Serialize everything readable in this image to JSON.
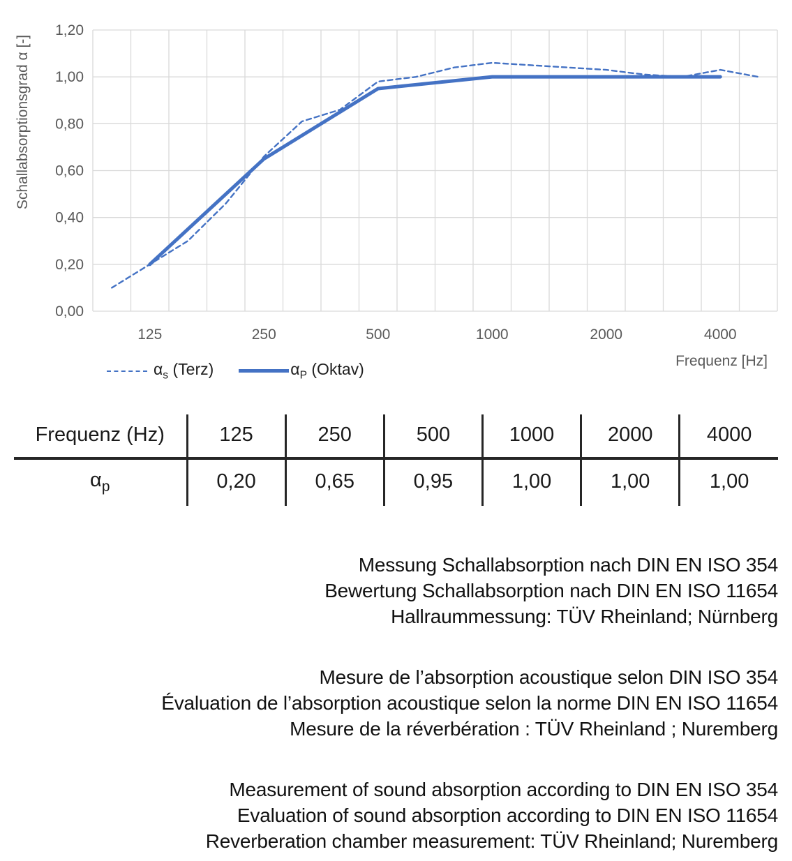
{
  "colors": {
    "series_blue": "#4472C4",
    "grid": "#D9D9D9",
    "axis_text": "#595959",
    "text": "#1A1A1A"
  },
  "chart": {
    "y_axis_title": "Schallabsorptionsgrad α [-]",
    "x_axis_title": "Frequenz [Hz]",
    "y_ticks": [
      "0,00",
      "0,20",
      "0,40",
      "0,60",
      "0,80",
      "1,00",
      "1,20"
    ],
    "x_ticks": [
      "125",
      "250",
      "500",
      "1000",
      "2000",
      "4000"
    ],
    "legend": {
      "terz": {
        "symbol": "α",
        "sub": "s",
        "rest": " (Terz)"
      },
      "oktav": {
        "symbol": "α",
        "sub": "P",
        "rest": " (Oktav)"
      }
    }
  },
  "chart_data": {
    "type": "line",
    "title": "",
    "xlabel": "Frequenz [Hz]",
    "ylabel": "Schallabsorptionsgrad α [-]",
    "ylim": [
      0,
      1.2
    ],
    "x_scale": "logarithmic, third-octave bands 100–5000 Hz",
    "grid": true,
    "legend_position": "bottom-left",
    "x_tick_labels": [
      125,
      250,
      500,
      1000,
      2000,
      4000
    ],
    "series": [
      {
        "name": "αs (Terz)",
        "style": "dashed",
        "x": [
          100,
          125,
          160,
          200,
          250,
          315,
          400,
          500,
          630,
          800,
          1000,
          1250,
          1600,
          2000,
          2500,
          3150,
          4000,
          5000
        ],
        "values": [
          0.1,
          0.2,
          0.3,
          0.46,
          0.66,
          0.81,
          0.86,
          0.98,
          1.0,
          1.04,
          1.06,
          1.05,
          1.04,
          1.03,
          1.01,
          1.0,
          1.03,
          1.0
        ]
      },
      {
        "name": "αP (Oktav)",
        "style": "solid",
        "x": [
          125,
          250,
          500,
          1000,
          2000,
          4000
        ],
        "values": [
          0.2,
          0.65,
          0.95,
          1.0,
          1.0,
          1.0
        ]
      }
    ]
  },
  "table": {
    "header": [
      "Frequenz (Hz)",
      "125",
      "250",
      "500",
      "1000",
      "2000",
      "4000"
    ],
    "row_label": {
      "symbol": "α",
      "sub": "p"
    },
    "values": [
      "0,20",
      "0,65",
      "0,95",
      "1,00",
      "1,00",
      "1,00"
    ]
  },
  "notes": {
    "de": [
      "Messung Schallabsorption nach DIN EN ISO 354",
      "Bewertung Schallabsorption nach DIN EN ISO 11654",
      "Hallraummessung: TÜV Rheinland; Nürnberg"
    ],
    "fr": [
      "Mesure de l’absorption acoustique selon DIN ISO 354",
      "Évaluation de l’absorption acoustique selon la norme DIN EN ISO 11654",
      "Mesure de la réverbération : TÜV Rheinland ; Nuremberg"
    ],
    "en": [
      "Measurement of sound absorption according to DIN EN ISO 354",
      "Evaluation of sound absorption according to DIN EN ISO 11654",
      "Reverberation chamber measurement: TÜV Rheinland; Nuremberg"
    ]
  }
}
